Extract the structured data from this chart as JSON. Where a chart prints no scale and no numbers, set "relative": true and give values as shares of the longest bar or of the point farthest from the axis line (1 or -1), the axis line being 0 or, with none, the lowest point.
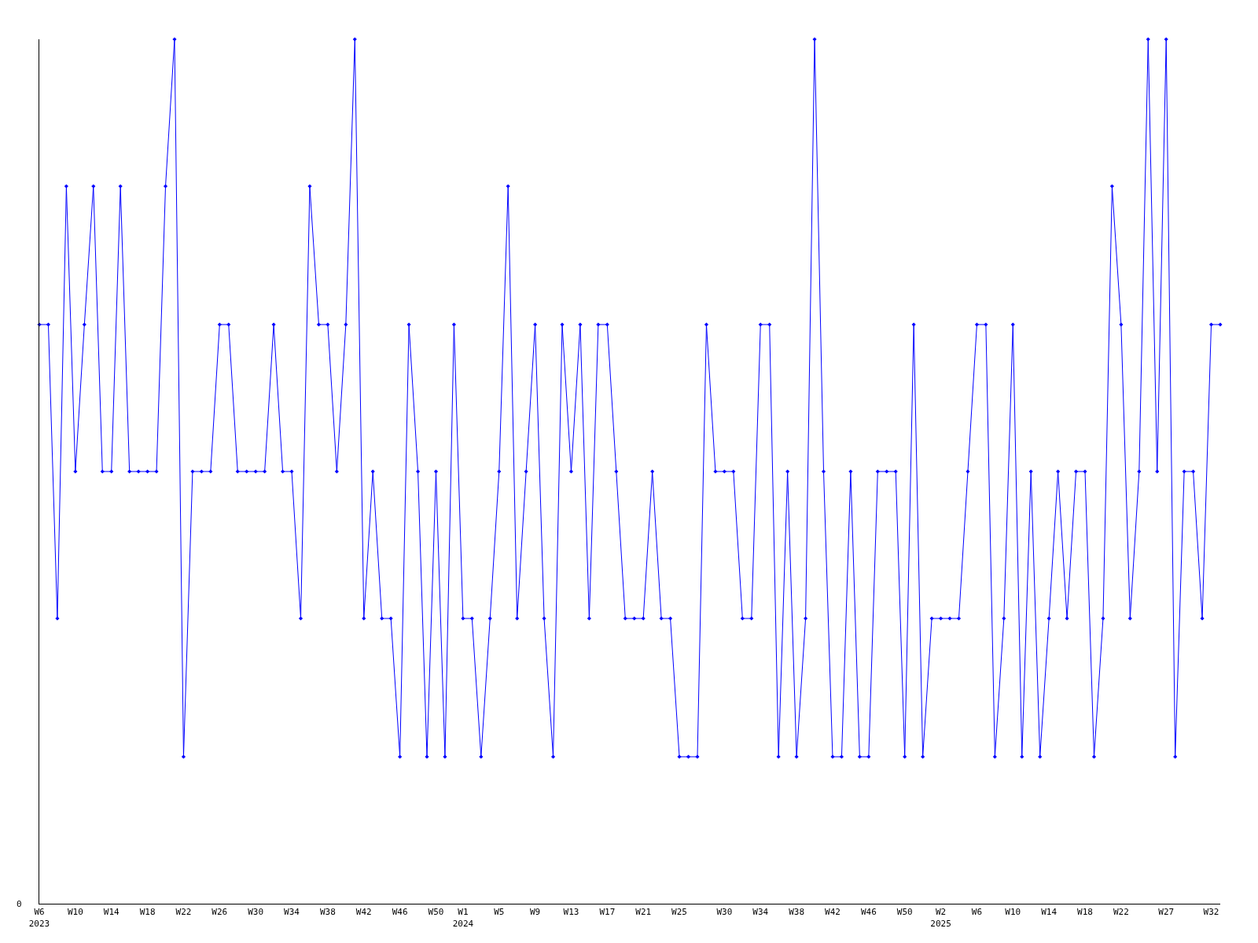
{
  "chart_data": {
    "type": "line",
    "relative": true,
    "marker": "diamond",
    "line_style": "solid",
    "annotations": [
      "0"
    ],
    "categories": [
      "W6\n2023",
      null,
      null,
      null,
      "W10",
      null,
      null,
      null,
      "W14",
      null,
      null,
      null,
      "W18",
      null,
      null,
      null,
      "W22",
      null,
      null,
      null,
      "W26",
      null,
      null,
      null,
      "W30",
      null,
      null,
      null,
      "W34",
      null,
      null,
      null,
      "W38",
      null,
      null,
      null,
      "W42",
      null,
      null,
      null,
      "W46",
      null,
      null,
      null,
      "W50",
      null,
      null,
      "W1\n2024",
      null,
      null,
      null,
      "W5",
      null,
      null,
      null,
      "W9",
      null,
      null,
      null,
      "W13",
      null,
      null,
      null,
      "W17",
      null,
      null,
      null,
      "W21",
      null,
      null,
      null,
      "W25",
      null,
      null,
      null,
      null,
      "W30",
      null,
      null,
      null,
      "W34",
      null,
      null,
      null,
      "W38",
      null,
      null,
      null,
      "W42",
      null,
      null,
      null,
      "W46",
      null,
      null,
      null,
      "W50",
      null,
      null,
      null,
      "W2\n2025",
      null,
      null,
      null,
      "W6",
      null,
      null,
      null,
      "W10",
      null,
      null,
      null,
      "W14",
      null,
      null,
      null,
      "W18",
      null,
      null,
      null,
      "W22",
      null,
      null,
      null,
      null,
      "W27",
      null,
      null,
      null,
      null,
      "W32",
      null
    ],
    "series": [
      {
        "color": "#0000ff",
        "values": [
          0.67,
          0.67,
          0.33,
          0.83,
          0.5,
          0.67,
          0.83,
          0.5,
          0.5,
          0.83,
          0.5,
          0.5,
          0.5,
          0.5,
          0.83,
          1,
          0.17,
          0.5,
          0.5,
          0.5,
          0.67,
          0.67,
          0.5,
          0.5,
          0.5,
          0.5,
          0.67,
          0.5,
          0.5,
          0.33,
          0.83,
          0.67,
          0.67,
          0.5,
          0.67,
          1,
          0.33,
          0.5,
          0.33,
          0.33,
          0.17,
          0.67,
          0.5,
          0.17,
          0.5,
          0.17,
          0.67,
          0.33,
          0.33,
          0.17,
          0.33,
          0.5,
          0.83,
          0.33,
          0.5,
          0.67,
          0.33,
          0.17,
          0.67,
          0.5,
          0.67,
          0.33,
          0.67,
          0.67,
          0.5,
          0.33,
          0.33,
          0.33,
          0.5,
          0.33,
          0.33,
          0.17,
          0.17,
          0.17,
          0.67,
          0.5,
          0.5,
          0.5,
          0.33,
          0.33,
          0.67,
          0.67,
          0.17,
          0.5,
          0.17,
          0.33,
          1,
          0.5,
          0.17,
          0.17,
          0.5,
          0.17,
          0.17,
          0.5,
          0.5,
          0.5,
          0.17,
          0.67,
          0.17,
          0.33,
          0.33,
          0.33,
          0.33,
          0.5,
          0.67,
          0.67,
          0.17,
          0.33,
          0.67,
          0.17,
          0.5,
          0.17,
          0.33,
          0.5,
          0.33,
          0.5,
          0.5,
          0.17,
          0.33,
          0.83,
          0.67,
          0.33,
          0.5,
          1,
          0.5,
          1,
          0.17,
          0.5,
          0.5,
          0.33,
          0.67,
          0.67
        ]
      }
    ]
  }
}
